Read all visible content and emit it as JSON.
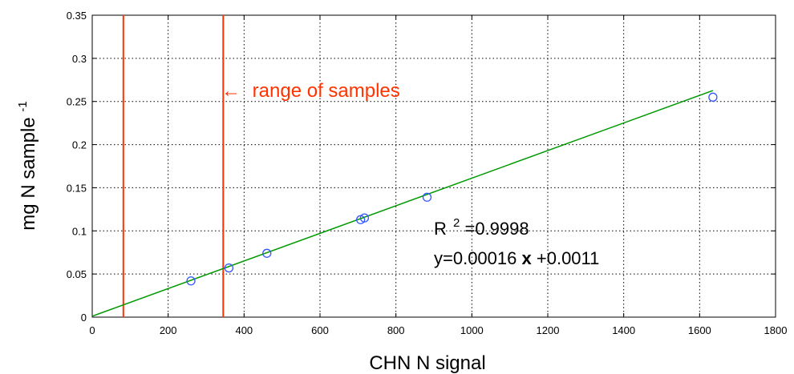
{
  "chart_data": {
    "type": "scatter",
    "title": "",
    "xlabel": "CHN N signal",
    "ylabel": "mg N sample",
    "ylabel_superscript": "-1",
    "xlim": [
      0,
      1800
    ],
    "ylim": [
      0,
      0.35
    ],
    "x_ticks": [
      "0",
      "200",
      "400",
      "600",
      "800",
      "1000",
      "1200",
      "1400",
      "1600",
      "1800"
    ],
    "y_ticks": [
      "0",
      "0.05",
      "0.1",
      "0.15",
      "0.2",
      "0.25",
      "0.3",
      "0.35"
    ],
    "grid": true,
    "points": [
      {
        "x": 260,
        "y": 0.042
      },
      {
        "x": 360,
        "y": 0.057
      },
      {
        "x": 460,
        "y": 0.074
      },
      {
        "x": 707,
        "y": 0.113
      },
      {
        "x": 717,
        "y": 0.115
      },
      {
        "x": 882,
        "y": 0.139
      },
      {
        "x": 1635,
        "y": 0.255
      }
    ],
    "fit": {
      "slope": 0.00016,
      "intercept": 0.0011,
      "x_range": [
        0,
        1635
      ]
    },
    "range_lines": [
      82,
      345
    ],
    "annotations": {
      "range_text": "range of samples",
      "r2_prefix": "R",
      "r2_sup": "2",
      "r2_value": "=0.9998",
      "equation_prefix": "y=0.00016",
      "equation_x": "x",
      "equation_suffix": "+0.0011"
    },
    "colors": {
      "points": "#3355ff",
      "fit": "#009900",
      "range": "#ff3300"
    }
  }
}
